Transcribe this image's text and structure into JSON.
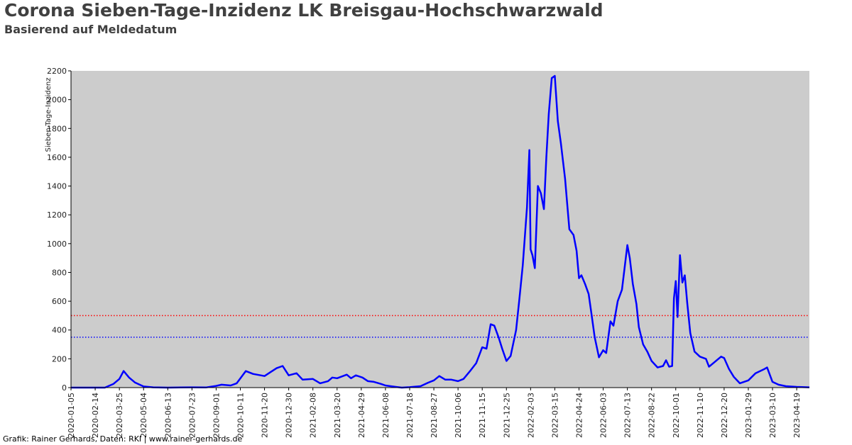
{
  "header": {
    "title": "Corona Sieben-Tage-Inzidenz LK Breisgau-Hochschwarzwald",
    "subtitle": "Basierend auf Meldedatum"
  },
  "footer": {
    "credit": "Grafik: Rainer Gerhards, Daten: RKI | www.rainer-gerhards.de"
  },
  "chart_data": {
    "type": "line",
    "title": "Corona Sieben-Tage-Inzidenz LK Breisgau-Hochschwarzwald",
    "subtitle": "Basierend auf Meldedatum",
    "ylabel": "Sieben-Tage-Inzidenz",
    "xlabel": "",
    "ylim": [
      0,
      2200
    ],
    "xlim": [
      "2020-01-05",
      "2023-05-10"
    ],
    "yticks": [
      0,
      200,
      400,
      600,
      800,
      1000,
      1200,
      1400,
      1600,
      1800,
      2000,
      2200
    ],
    "xticks": [
      "2020-01-05",
      "2020-02-14",
      "2020-03-25",
      "2020-05-04",
      "2020-06-13",
      "2020-07-23",
      "2020-09-01",
      "2020-10-11",
      "2020-11-20",
      "2020-12-30",
      "2021-02-08",
      "2021-03-20",
      "2021-04-29",
      "2021-06-08",
      "2021-07-18",
      "2021-08-27",
      "2021-10-06",
      "2021-11-15",
      "2021-12-25",
      "2022-02-03",
      "2022-03-15",
      "2022-04-24",
      "2022-06-03",
      "2022-07-13",
      "2022-08-22",
      "2022-10-01",
      "2022-11-10",
      "2022-12-20",
      "2023-01-29",
      "2023-03-10",
      "2023-04-19"
    ],
    "grid": false,
    "background_color": "#cccccc",
    "series": [
      {
        "color": "#0000ff",
        "points": [
          [
            "2020-01-05",
            0
          ],
          [
            "2020-03-01",
            0
          ],
          [
            "2020-03-15",
            25
          ],
          [
            "2020-03-25",
            60
          ],
          [
            "2020-04-01",
            115
          ],
          [
            "2020-04-10",
            70
          ],
          [
            "2020-04-20",
            35
          ],
          [
            "2020-05-04",
            8
          ],
          [
            "2020-05-20",
            2
          ],
          [
            "2020-06-13",
            0
          ],
          [
            "2020-07-23",
            2
          ],
          [
            "2020-08-15",
            1
          ],
          [
            "2020-09-01",
            12
          ],
          [
            "2020-09-10",
            20
          ],
          [
            "2020-09-25",
            15
          ],
          [
            "2020-10-05",
            30
          ],
          [
            "2020-10-20",
            115
          ],
          [
            "2020-11-01",
            95
          ],
          [
            "2020-11-20",
            80
          ],
          [
            "2020-12-01",
            110
          ],
          [
            "2020-12-10",
            135
          ],
          [
            "2020-12-20",
            150
          ],
          [
            "2020-12-30",
            85
          ],
          [
            "2021-01-12",
            100
          ],
          [
            "2021-01-22",
            55
          ],
          [
            "2021-02-08",
            60
          ],
          [
            "2021-02-20",
            30
          ],
          [
            "2021-03-05",
            45
          ],
          [
            "2021-03-12",
            70
          ],
          [
            "2021-03-20",
            65
          ],
          [
            "2021-04-05",
            90
          ],
          [
            "2021-04-12",
            65
          ],
          [
            "2021-04-20",
            85
          ],
          [
            "2021-05-01",
            70
          ],
          [
            "2021-05-10",
            45
          ],
          [
            "2021-05-20",
            40
          ],
          [
            "2021-06-01",
            25
          ],
          [
            "2021-06-08",
            15
          ],
          [
            "2021-06-25",
            5
          ],
          [
            "2021-07-05",
            0
          ],
          [
            "2021-07-18",
            3
          ],
          [
            "2021-08-05",
            10
          ],
          [
            "2021-08-18",
            35
          ],
          [
            "2021-08-27",
            50
          ],
          [
            "2021-09-05",
            80
          ],
          [
            "2021-09-15",
            55
          ],
          [
            "2021-09-25",
            55
          ],
          [
            "2021-10-06",
            45
          ],
          [
            "2021-10-15",
            60
          ],
          [
            "2021-10-25",
            110
          ],
          [
            "2021-11-05",
            170
          ],
          [
            "2021-11-15",
            280
          ],
          [
            "2021-11-22",
            270
          ],
          [
            "2021-11-29",
            440
          ],
          [
            "2021-12-05",
            430
          ],
          [
            "2021-12-12",
            350
          ],
          [
            "2021-12-18",
            270
          ],
          [
            "2021-12-25",
            185
          ],
          [
            "2022-01-01",
            220
          ],
          [
            "2022-01-10",
            400
          ],
          [
            "2022-01-15",
            600
          ],
          [
            "2022-01-21",
            850
          ],
          [
            "2022-01-28",
            1250
          ],
          [
            "2022-02-01",
            1650
          ],
          [
            "2022-02-03",
            960
          ],
          [
            "2022-02-06",
            920
          ],
          [
            "2022-02-10",
            830
          ],
          [
            "2022-02-15",
            1400
          ],
          [
            "2022-02-20",
            1350
          ],
          [
            "2022-02-25",
            1240
          ],
          [
            "2022-03-01",
            1600
          ],
          [
            "2022-03-05",
            1900
          ],
          [
            "2022-03-10",
            2150
          ],
          [
            "2022-03-15",
            2165
          ],
          [
            "2022-03-20",
            1850
          ],
          [
            "2022-03-25",
            1700
          ],
          [
            "2022-04-01",
            1450
          ],
          [
            "2022-04-08",
            1100
          ],
          [
            "2022-04-15",
            1060
          ],
          [
            "2022-04-20",
            950
          ],
          [
            "2022-04-24",
            760
          ],
          [
            "2022-04-28",
            780
          ],
          [
            "2022-05-04",
            720
          ],
          [
            "2022-05-10",
            650
          ],
          [
            "2022-05-15",
            500
          ],
          [
            "2022-05-20",
            350
          ],
          [
            "2022-05-27",
            210
          ],
          [
            "2022-06-03",
            260
          ],
          [
            "2022-06-08",
            240
          ],
          [
            "2022-06-15",
            460
          ],
          [
            "2022-06-20",
            430
          ],
          [
            "2022-06-27",
            600
          ],
          [
            "2022-07-04",
            680
          ],
          [
            "2022-07-13",
            990
          ],
          [
            "2022-07-17",
            900
          ],
          [
            "2022-07-22",
            720
          ],
          [
            "2022-07-28",
            580
          ],
          [
            "2022-08-01",
            420
          ],
          [
            "2022-08-08",
            300
          ],
          [
            "2022-08-15",
            250
          ],
          [
            "2022-08-22",
            185
          ],
          [
            "2022-09-01",
            140
          ],
          [
            "2022-09-10",
            150
          ],
          [
            "2022-09-15",
            190
          ],
          [
            "2022-09-20",
            145
          ],
          [
            "2022-09-25",
            150
          ],
          [
            "2022-09-28",
            620
          ],
          [
            "2022-10-01",
            740
          ],
          [
            "2022-10-04",
            490
          ],
          [
            "2022-10-08",
            920
          ],
          [
            "2022-10-12",
            730
          ],
          [
            "2022-10-16",
            780
          ],
          [
            "2022-10-20",
            590
          ],
          [
            "2022-10-25",
            380
          ],
          [
            "2022-11-01",
            250
          ],
          [
            "2022-11-10",
            215
          ],
          [
            "2022-11-20",
            200
          ],
          [
            "2022-11-25",
            145
          ],
          [
            "2022-12-05",
            180
          ],
          [
            "2022-12-15",
            215
          ],
          [
            "2022-12-20",
            205
          ],
          [
            "2022-12-28",
            130
          ],
          [
            "2023-01-05",
            75
          ],
          [
            "2023-01-15",
            30
          ],
          [
            "2023-01-29",
            50
          ],
          [
            "2023-02-10",
            100
          ],
          [
            "2023-02-25",
            130
          ],
          [
            "2023-03-01",
            140
          ],
          [
            "2023-03-10",
            40
          ],
          [
            "2023-03-20",
            20
          ],
          [
            "2023-04-01",
            10
          ],
          [
            "2023-04-19",
            5
          ],
          [
            "2023-05-10",
            2
          ]
        ]
      }
    ],
    "reference_lines": [
      {
        "y": 500,
        "color": "#ff0000",
        "style": "dotted"
      },
      {
        "y": 350,
        "color": "#0000ff",
        "style": "dotted"
      }
    ]
  }
}
